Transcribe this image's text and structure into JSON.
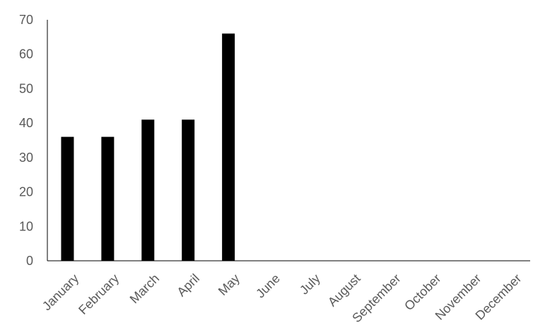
{
  "chart_data": {
    "type": "bar",
    "title": "",
    "xlabel": "",
    "ylabel": "",
    "categories": [
      "January",
      "February",
      "March",
      "April",
      "May",
      "June",
      "July",
      "August",
      "September",
      "October",
      "November",
      "December"
    ],
    "values": [
      36,
      36,
      41,
      41,
      66,
      0,
      0,
      0,
      0,
      0,
      0,
      0
    ],
    "ylim": [
      0,
      70
    ],
    "yticks": [
      0,
      10,
      20,
      30,
      40,
      50,
      60,
      70
    ],
    "grid": false,
    "legend": "none",
    "bar_color": "#000000",
    "tick_label_color": "#595959",
    "axis_color": "#000000"
  }
}
